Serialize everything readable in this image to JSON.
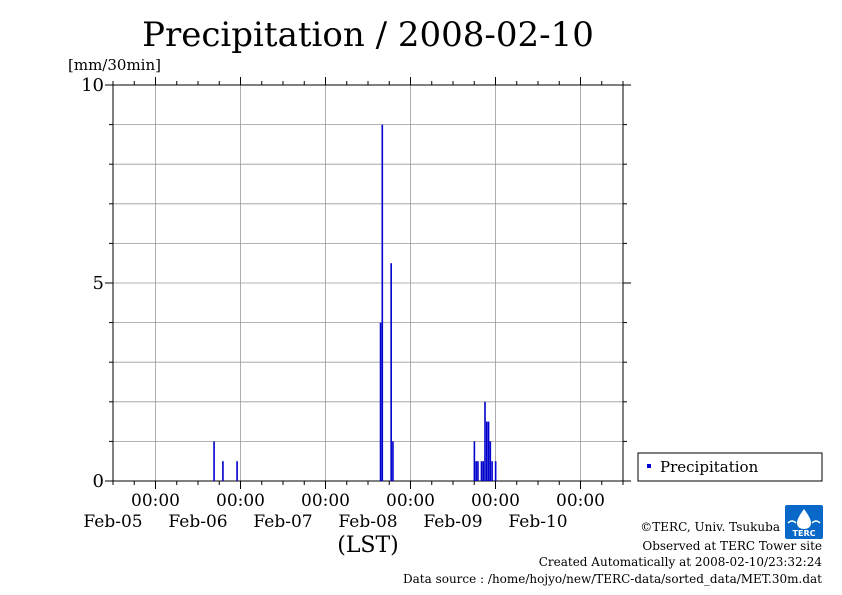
{
  "chart_data": {
    "type": "bar",
    "title": "Precipitation / 2008-02-10",
    "ylabel": "[mm/30min]",
    "xlabel": "(LST)",
    "ylim": [
      0,
      10
    ],
    "yticks": [
      0,
      5,
      10
    ],
    "xlim": [
      "2008-02-04 12:00",
      "2008-02-10 12:00"
    ],
    "time_tick_label": "00:00",
    "date_ticks": [
      "Feb-05",
      "Feb-06",
      "Feb-07",
      "Feb-08",
      "Feb-09",
      "Feb-10"
    ],
    "grid": true,
    "legend_position": "right",
    "bar_color": "#0000cc",
    "series": [
      {
        "name": "Precipitation",
        "points": [
          {
            "t": "2008-02-05 16:30",
            "v": 1.0
          },
          {
            "t": "2008-02-05 19:00",
            "v": 0.5
          },
          {
            "t": "2008-02-05 23:00",
            "v": 0.5
          },
          {
            "t": "2008-02-07 15:30",
            "v": 4.0
          },
          {
            "t": "2008-02-07 16:00",
            "v": 9.0
          },
          {
            "t": "2008-02-07 18:30",
            "v": 5.5
          },
          {
            "t": "2008-02-07 19:00",
            "v": 1.0
          },
          {
            "t": "2008-02-08 18:00",
            "v": 1.0
          },
          {
            "t": "2008-02-08 18:30",
            "v": 0.5
          },
          {
            "t": "2008-02-08 19:00",
            "v": 0.5
          },
          {
            "t": "2008-02-08 20:00",
            "v": 0.5
          },
          {
            "t": "2008-02-08 20:30",
            "v": 0.5
          },
          {
            "t": "2008-02-08 21:00",
            "v": 2.0
          },
          {
            "t": "2008-02-08 21:30",
            "v": 1.5
          },
          {
            "t": "2008-02-08 22:00",
            "v": 1.5
          },
          {
            "t": "2008-02-08 22:30",
            "v": 1.0
          },
          {
            "t": "2008-02-08 23:00",
            "v": 0.5
          },
          {
            "t": "2008-02-09 00:00",
            "v": 0.5
          }
        ]
      }
    ]
  },
  "credits": {
    "copyright": "©TERC, Univ. Tsukuba",
    "observed": "Observed at TERC Tower site",
    "created": "Created Automatically at 2008-02-10/23:32:24",
    "source": "Data source : /home/hojyo/new/TERC-data/sorted_data/MET.30m.dat",
    "logo_text": "TERC"
  }
}
